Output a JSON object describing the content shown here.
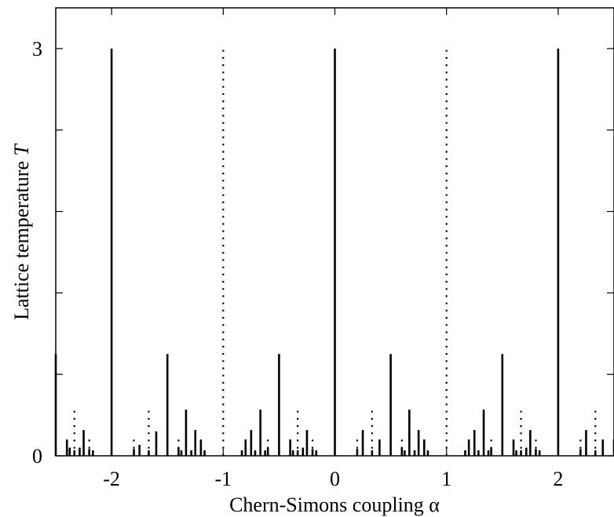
{
  "chart_data": {
    "type": "bar",
    "xlabel": "Chern-Simons coupling α",
    "ylabel_text": "Lattice temperature ",
    "ylabel_var": "T",
    "xlim": [
      -2.5,
      2.5
    ],
    "ylim": [
      0,
      3.3
    ],
    "x_ticks": [
      -2,
      -1,
      0,
      1,
      2
    ],
    "x_tick_labels": [
      "-2",
      "-1",
      "0",
      "1",
      "2"
    ],
    "y_ticks": [
      0,
      0.6,
      1.2,
      1.8,
      2.4,
      3.0
    ],
    "y_tick_labels": [
      "0",
      "",
      "",
      "",
      "",
      "3"
    ],
    "series": [
      {
        "style": "solid",
        "points": [
          [
            -2.5,
            0.75
          ],
          [
            -2.4,
            0.12
          ],
          [
            -2.375,
            0.06
          ],
          [
            -2.333,
            0.04
          ],
          [
            -2.286,
            0.06
          ],
          [
            -2.25,
            0.19
          ],
          [
            -2.2,
            0.05
          ],
          [
            -2.167,
            0.04
          ],
          [
            -2.0,
            3.0
          ],
          [
            -1.8,
            0.05
          ],
          [
            -1.75,
            0.08
          ],
          [
            -1.667,
            0.04
          ],
          [
            -1.6,
            0.18
          ],
          [
            -1.5,
            0.75
          ],
          [
            -1.4,
            0.06
          ],
          [
            -1.375,
            0.04
          ],
          [
            -1.333,
            0.34
          ],
          [
            -1.286,
            0.04
          ],
          [
            -1.25,
            0.19
          ],
          [
            -1.2,
            0.12
          ],
          [
            -1.167,
            0.04
          ],
          [
            -0.833,
            0.04
          ],
          [
            -0.8,
            0.12
          ],
          [
            -0.75,
            0.19
          ],
          [
            -0.714,
            0.04
          ],
          [
            -0.667,
            0.34
          ],
          [
            -0.625,
            0.04
          ],
          [
            -0.6,
            0.06
          ],
          [
            -0.5,
            0.75
          ],
          [
            -0.4,
            0.12
          ],
          [
            -0.375,
            0.04
          ],
          [
            -0.333,
            0.04
          ],
          [
            -0.286,
            0.06
          ],
          [
            -0.25,
            0.19
          ],
          [
            -0.2,
            0.05
          ],
          [
            -0.167,
            0.04
          ],
          [
            0.0,
            3.0
          ],
          [
            0.2,
            0.05
          ],
          [
            0.25,
            0.19
          ],
          [
            0.333,
            0.04
          ],
          [
            0.4,
            0.12
          ],
          [
            0.5,
            0.75
          ],
          [
            0.6,
            0.06
          ],
          [
            0.625,
            0.04
          ],
          [
            0.667,
            0.34
          ],
          [
            0.714,
            0.04
          ],
          [
            0.75,
            0.19
          ],
          [
            0.8,
            0.12
          ],
          [
            0.833,
            0.04
          ],
          [
            1.167,
            0.04
          ],
          [
            1.2,
            0.12
          ],
          [
            1.25,
            0.19
          ],
          [
            1.286,
            0.04
          ],
          [
            1.333,
            0.34
          ],
          [
            1.375,
            0.04
          ],
          [
            1.4,
            0.06
          ],
          [
            1.5,
            0.75
          ],
          [
            1.6,
            0.12
          ],
          [
            1.625,
            0.04
          ],
          [
            1.667,
            0.04
          ],
          [
            1.714,
            0.06
          ],
          [
            1.75,
            0.19
          ],
          [
            1.8,
            0.05
          ],
          [
            1.833,
            0.04
          ],
          [
            2.0,
            3.0
          ],
          [
            2.2,
            0.05
          ],
          [
            2.25,
            0.19
          ],
          [
            2.333,
            0.04
          ],
          [
            2.4,
            0.12
          ],
          [
            2.5,
            0.12
          ]
        ]
      },
      {
        "style": "dotted",
        "points": [
          [
            -2.333,
            0.34
          ],
          [
            -2.2,
            0.12
          ],
          [
            -1.8,
            0.12
          ],
          [
            -1.667,
            0.34
          ],
          [
            -1.4,
            0.12
          ],
          [
            -1.0,
            3.0
          ],
          [
            -0.6,
            0.12
          ],
          [
            -0.333,
            0.34
          ],
          [
            -0.2,
            0.12
          ],
          [
            0.2,
            0.12
          ],
          [
            0.333,
            0.34
          ],
          [
            0.6,
            0.12
          ],
          [
            1.0,
            3.0
          ],
          [
            1.4,
            0.12
          ],
          [
            1.667,
            0.34
          ],
          [
            1.8,
            0.12
          ],
          [
            2.2,
            0.12
          ],
          [
            2.333,
            0.34
          ]
        ]
      }
    ]
  }
}
